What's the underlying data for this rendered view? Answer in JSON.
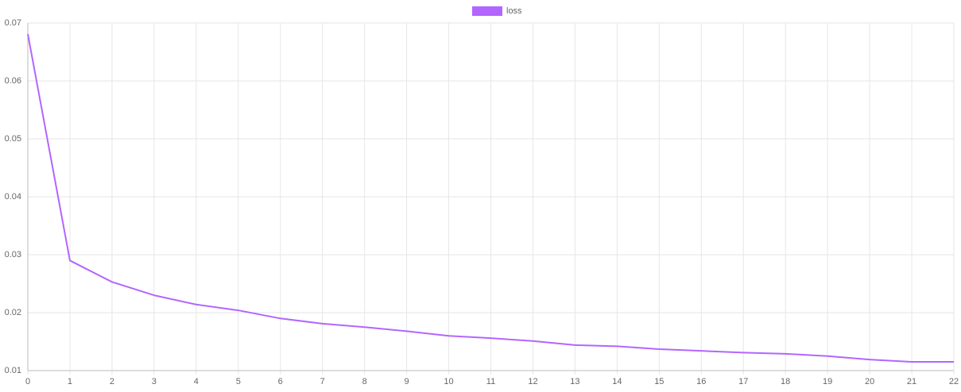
{
  "chart_data": {
    "type": "line",
    "x": [
      0,
      1,
      2,
      3,
      4,
      5,
      6,
      7,
      8,
      9,
      10,
      11,
      12,
      13,
      14,
      15,
      16,
      17,
      18,
      19,
      20,
      21,
      22
    ],
    "series": [
      {
        "name": "loss",
        "color": "#b266ff",
        "values": [
          0.0681,
          0.029,
          0.0253,
          0.023,
          0.0214,
          0.0204,
          0.019,
          0.0181,
          0.0175,
          0.0168,
          0.016,
          0.0156,
          0.0151,
          0.0144,
          0.0142,
          0.0137,
          0.0134,
          0.0131,
          0.0129,
          0.0125,
          0.0119,
          0.0115,
          0.0115
        ]
      }
    ],
    "xlim": [
      0,
      22
    ],
    "xticks": [
      0,
      1,
      2,
      3,
      4,
      5,
      6,
      7,
      8,
      9,
      10,
      11,
      12,
      13,
      14,
      15,
      16,
      17,
      18,
      19,
      20,
      21,
      22
    ],
    "ylim": [
      0.01,
      0.07
    ],
    "yticks": [
      0.01,
      0.02,
      0.03,
      0.04,
      0.05,
      0.06,
      0.07
    ],
    "grid": true,
    "legend": "top"
  }
}
